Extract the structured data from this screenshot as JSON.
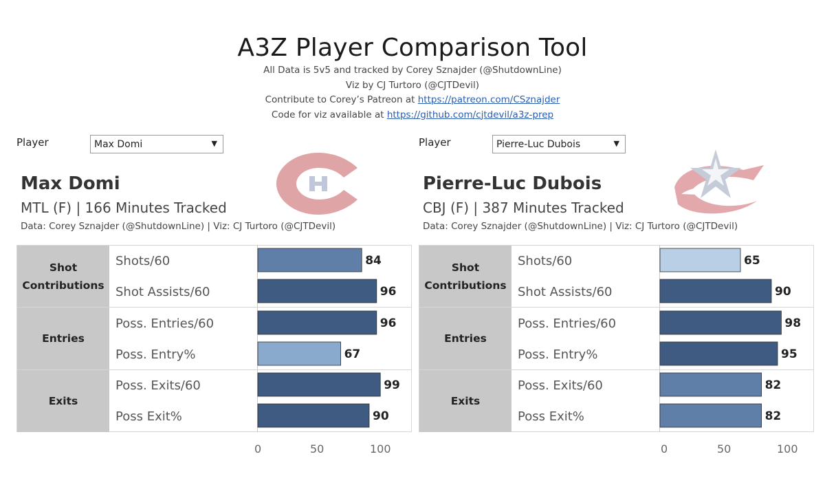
{
  "header": {
    "title": "A3Z Player Comparison Tool",
    "line1": "All Data is 5v5 and tracked by Corey Sznajder (@ShutdownLine)",
    "line2": "Viz by CJ Turtoro (@CJTDevil)",
    "line3_prefix": "Contribute to Corey’s Patreon at ",
    "line3_link": "https://patreon.com/CSznajder",
    "line4_prefix": "Code for viz available at ",
    "line4_link": "https://github.com/cjtdevil/a3z-prep"
  },
  "player_label": "Player",
  "axis_ticks": [
    "0",
    "50",
    "100"
  ],
  "colors": {
    "dark_bar": "#3f5b82",
    "mid_bar": "#5f7fa8",
    "light_bar": "#8aaacd",
    "pale_bar": "#b8cfe6",
    "group_bg": "#c8c8c8",
    "mtl_red": "#d9a5a7",
    "mtl_blue": "#b6c1d6",
    "cbj_blue": "#c3ccd9",
    "cbj_red": "#e7b6b6"
  },
  "groups": [
    {
      "label": "Shot\nContributions"
    },
    {
      "label": "Entries"
    },
    {
      "label": "Exits"
    }
  ],
  "metrics": [
    "Shots/60",
    "Shot Assists/60",
    "Poss. Entries/60",
    "Poss. Entry%",
    "Poss. Exits/60",
    "Poss Exit%"
  ],
  "players": [
    {
      "dropdown": "Max Domi",
      "name": "Max Domi",
      "meta": "MTL (F) | 166 Minutes Tracked",
      "credit": "Data: Corey Sznajder (@ShutdownLine) | Viz: CJ Turtoro (@CJTDevil)",
      "logo": "canadiens-logo"
    },
    {
      "dropdown": "Pierre-Luc Dubois",
      "name": "Pierre-Luc Dubois",
      "meta": "CBJ (F) | 387 Minutes Tracked",
      "credit": "Data: Corey Sznajder (@ShutdownLine) | Viz: CJ Turtoro (@CJTDevil)",
      "logo": "blue-jackets-logo"
    }
  ],
  "chart_data": [
    {
      "type": "bar",
      "orientation": "horizontal",
      "categories": [
        "Shots/60",
        "Shot Assists/60",
        "Poss. Entries/60",
        "Poss. Entry%",
        "Poss. Exits/60",
        "Poss Exit%"
      ],
      "values": [
        84,
        96,
        96,
        67,
        99,
        90
      ],
      "bar_colors": [
        "#5f7fa8",
        "#3f5b82",
        "#3f5b82",
        "#8aaacd",
        "#3f5b82",
        "#3f5b82"
      ],
      "xlim": [
        0,
        100
      ],
      "xticks": [
        0,
        50,
        100
      ],
      "title": "Max Domi"
    },
    {
      "type": "bar",
      "orientation": "horizontal",
      "categories": [
        "Shots/60",
        "Shot Assists/60",
        "Poss. Entries/60",
        "Poss. Entry%",
        "Poss. Exits/60",
        "Poss Exit%"
      ],
      "values": [
        65,
        90,
        98,
        95,
        82,
        82
      ],
      "bar_colors": [
        "#b8cfe6",
        "#3f5b82",
        "#3f5b82",
        "#3f5b82",
        "#5f7fa8",
        "#5f7fa8"
      ],
      "xlim": [
        0,
        100
      ],
      "xticks": [
        0,
        50,
        100
      ],
      "title": "Pierre-Luc Dubois"
    }
  ]
}
